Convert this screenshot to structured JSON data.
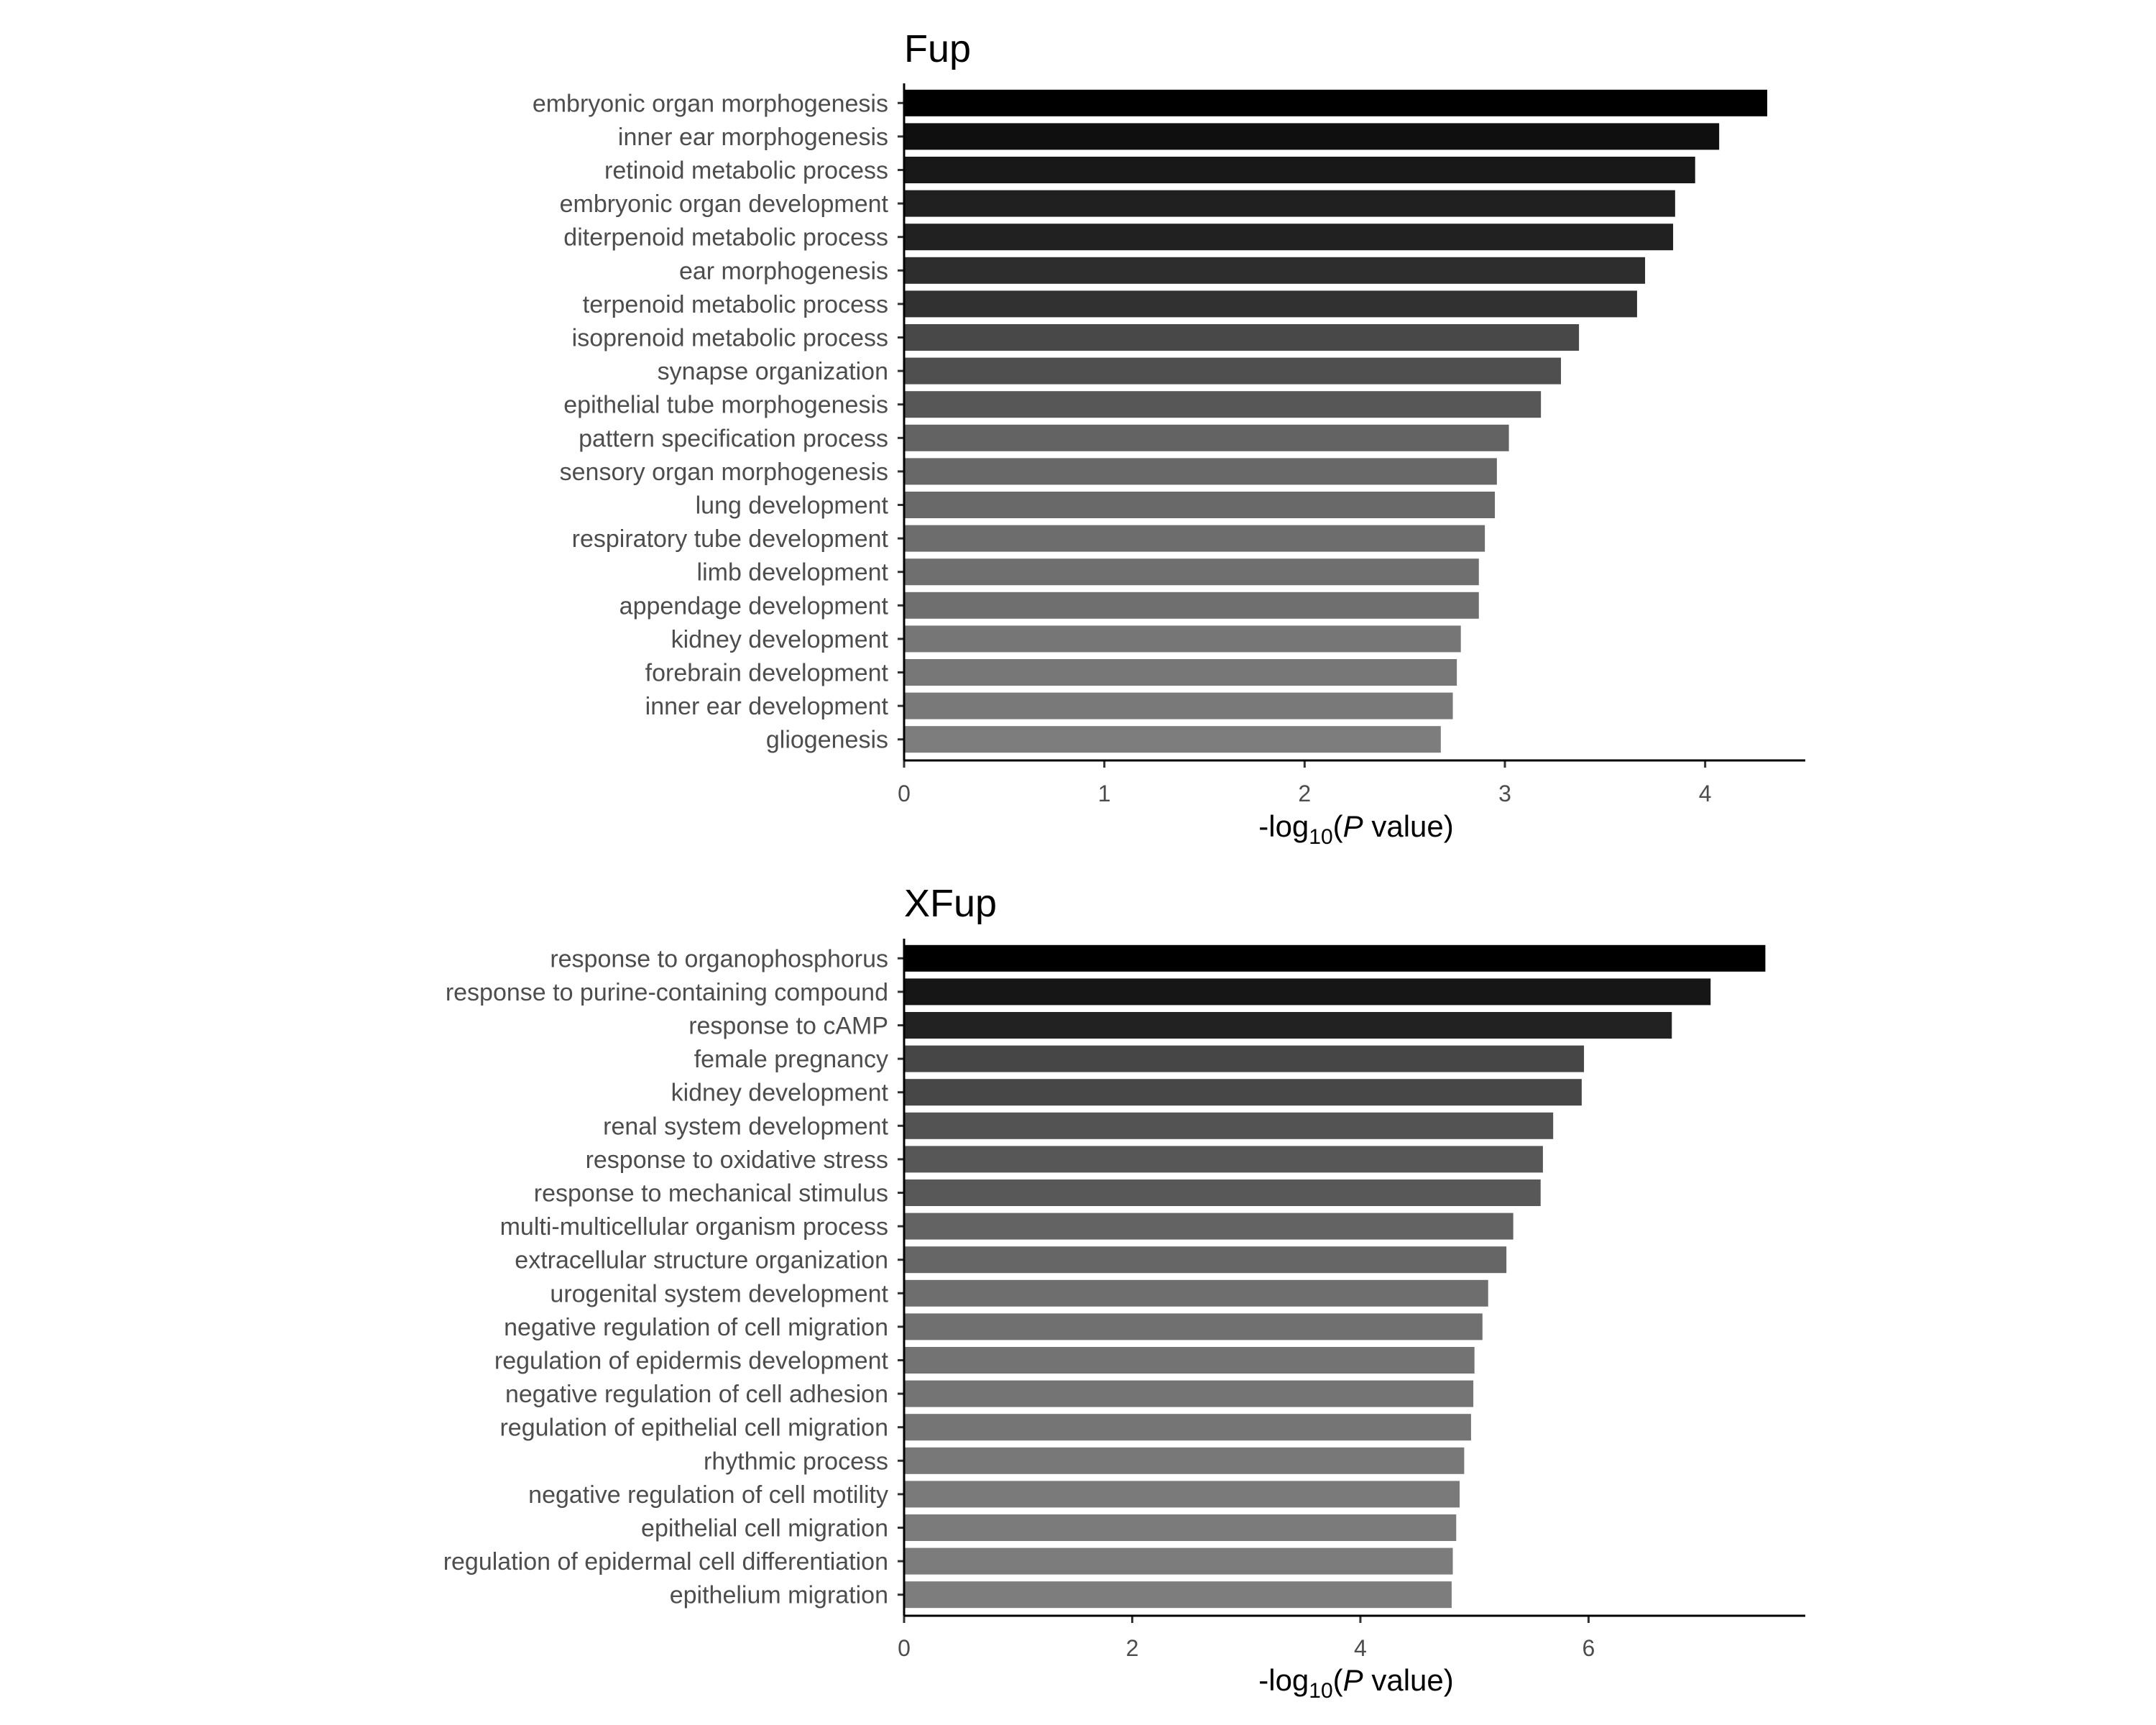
{
  "chart_data": [
    {
      "type": "bar",
      "orientation": "horizontal",
      "title": "Fup",
      "xlabel": "-log10(P value)",
      "xlabel_parts": {
        "prefix": "-log",
        "subscript": "10",
        "open": "(",
        "italic": "P",
        "rest": " value)"
      },
      "xlim": [
        0,
        4.5
      ],
      "xticks": [
        0,
        1,
        2,
        3,
        4
      ],
      "grid": false,
      "legend": "none",
      "categories": [
        "embryonic organ morphogenesis",
        "inner ear morphogenesis",
        "retinoid metabolic process",
        "embryonic organ development",
        "diterpenoid metabolic process",
        "ear morphogenesis",
        "terpenoid metabolic process",
        "isoprenoid metabolic process",
        "synapse organization",
        "epithelial tube morphogenesis",
        "pattern specification process",
        "sensory organ morphogenesis",
        "lung development",
        "respiratory tube development",
        "limb development",
        "appendage development",
        "kidney development",
        "forebrain development",
        "inner ear development",
        "gliogenesis"
      ],
      "values": [
        4.31,
        4.07,
        3.95,
        3.85,
        3.84,
        3.7,
        3.66,
        3.37,
        3.28,
        3.18,
        3.02,
        2.96,
        2.95,
        2.9,
        2.87,
        2.87,
        2.78,
        2.76,
        2.74,
        2.68
      ],
      "colors": [
        "#000000",
        "#0f0f0f",
        "#181818",
        "#202020",
        "#212121",
        "#2d2d2d",
        "#313131",
        "#484848",
        "#4f4f4f",
        "#575757",
        "#636363",
        "#686868",
        "#696969",
        "#6d6d6d",
        "#6f6f6f",
        "#6f6f6f",
        "#767676",
        "#777777",
        "#797979",
        "#7d7d7d"
      ]
    },
    {
      "type": "bar",
      "orientation": "horizontal",
      "title": "XFup",
      "xlabel": "-log10(P value)",
      "xlabel_parts": {
        "prefix": "-log",
        "subscript": "10",
        "open": "(",
        "italic": "P",
        "rest": " value)"
      },
      "xlim": [
        0,
        7.9
      ],
      "xticks": [
        0,
        2,
        4,
        6
      ],
      "grid": false,
      "legend": "none",
      "categories": [
        "response to organophosphorus",
        "response to purine-containing compound",
        "response to cAMP",
        "female pregnancy",
        "kidney development",
        "renal system development",
        "response to oxidative stress",
        "response to mechanical stimulus",
        "multi-multicellular organism process",
        "extracellular structure organization",
        "urogenital system development",
        "negative regulation of cell migration",
        "regulation of epidermis development",
        "negative regulation of cell adhesion",
        "regulation of epithelial cell migration",
        "rhythmic process",
        "negative regulation of cell motility",
        "epithelial cell migration",
        "regulation of epidermal cell differentiation",
        "epithelium migration"
      ],
      "values": [
        7.55,
        7.07,
        6.73,
        5.96,
        5.94,
        5.69,
        5.6,
        5.58,
        5.34,
        5.28,
        5.12,
        5.07,
        5.0,
        4.99,
        4.97,
        4.91,
        4.87,
        4.84,
        4.81,
        4.8
      ],
      "colors": [
        "#000000",
        "#161616",
        "#222222",
        "#464646",
        "#474747",
        "#535353",
        "#575757",
        "#585858",
        "#636363",
        "#666666",
        "#6e6e6e",
        "#707070",
        "#737373",
        "#747474",
        "#757575",
        "#787878",
        "#7a7a7a",
        "#7b7b7b",
        "#7c7c7c",
        "#7d7d7d"
      ]
    }
  ]
}
